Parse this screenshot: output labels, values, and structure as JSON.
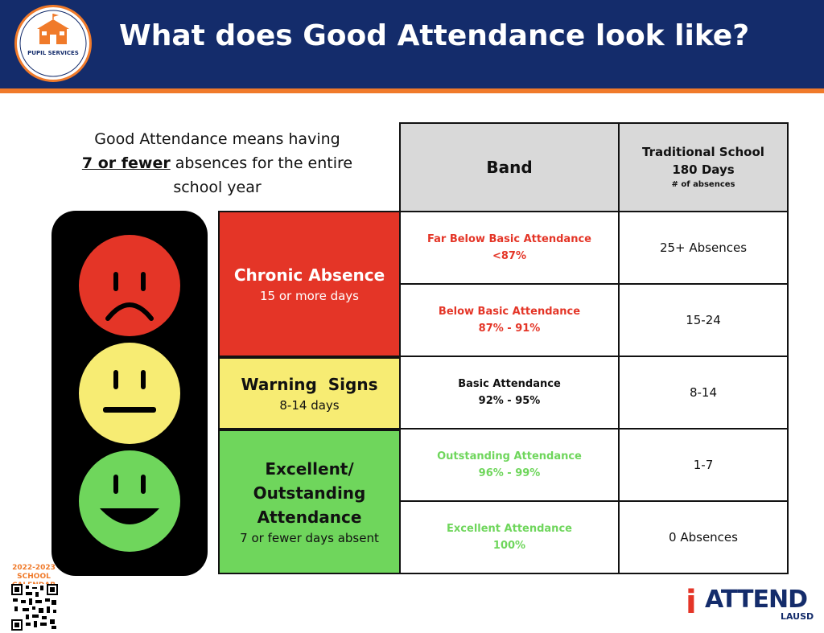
{
  "header": {
    "title": "What does Good Attendance look like?",
    "logo": {
      "name": "PUPIL SERVICES",
      "ring_text": "ENROLLED, ATTENDING, ENGAGED, AND ON TRACK TO GRADUATE",
      "sub_text": "CHILD WELFARE & ATTENDANCE",
      "icon": "schoolhouse-icon"
    },
    "colors": {
      "navy": "#142c6b",
      "orange": "#f07a2a"
    }
  },
  "intro": {
    "line1": "Good Attendance means having",
    "emphasis": "7 or fewer",
    "line2_rest": " absences for the entire",
    "line3": "school year"
  },
  "traffic_light": {
    "faces": [
      {
        "mood": "frown-face-icon",
        "color": "#e43527"
      },
      {
        "mood": "neutral-face-icon",
        "color": "#f7ec73"
      },
      {
        "mood": "smile-face-icon",
        "color": "#6fd65c"
      }
    ]
  },
  "categories": [
    {
      "title": "Chronic Absence",
      "sub": "15 or more days",
      "color": "#e43527"
    },
    {
      "title": "Warning  Signs",
      "sub": "8-14 days",
      "color": "#f7ec73"
    },
    {
      "title": "Excellent/ Outstanding Attendance",
      "title_lines": [
        "Excellent/",
        "Outstanding",
        "Attendance"
      ],
      "sub": "7 or fewer days absent",
      "color": "#6fd65c"
    }
  ],
  "table": {
    "header": {
      "band": "Band",
      "days_title_1": "Traditional School",
      "days_title_2": "180 Days",
      "days_unit": "# of absences"
    },
    "rows": [
      {
        "band_line1": "Far Below Basic Attendance",
        "band_line2": "<87%",
        "days": "25+ Absences",
        "color": "#e43527"
      },
      {
        "band_line1": "Below Basic Attendance",
        "band_line2": "87% - 91%",
        "days": "15-24",
        "color": "#e43527"
      },
      {
        "band_line1": "Basic Attendance",
        "band_line2": "92% - 95%",
        "days": "8-14",
        "color": "#111111"
      },
      {
        "band_line1": "Outstanding Attendance",
        "band_line2": "96% - 99%",
        "days": "1-7",
        "color": "#6fd65c"
      },
      {
        "band_line1": "Excellent Attendance",
        "band_line2": "100%",
        "days": "0 Absences",
        "color": "#6fd65c"
      }
    ]
  },
  "footer": {
    "calendar_line1": "2022-2023",
    "calendar_line2": "SCHOOL CALENDAR",
    "qr": "qr-code-icon",
    "brand_i": "i",
    "brand_word": "ATTEND",
    "brand_sub": "LAUSD"
  }
}
